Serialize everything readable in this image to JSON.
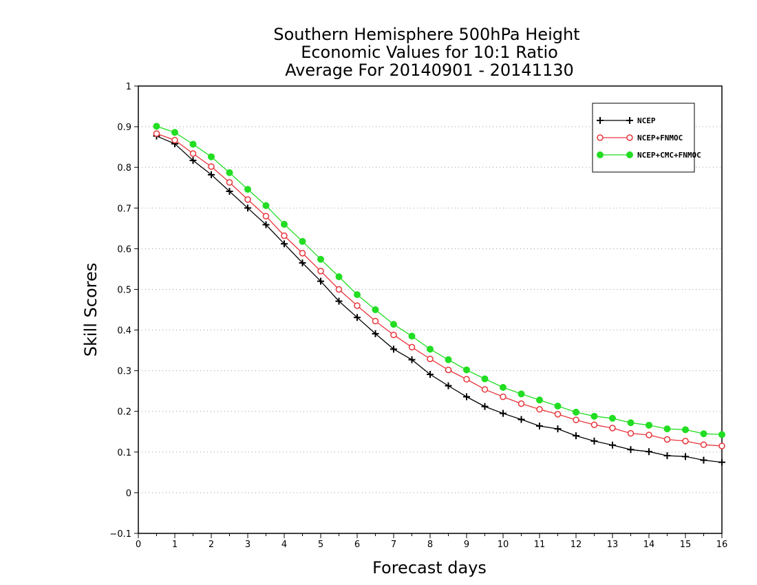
{
  "chart_data": {
    "type": "line",
    "title_lines": [
      "Southern Hemisphere 500hPa Height",
      "Economic Values for 10:1 Ratio",
      "Average For 20140901 - 20141130"
    ],
    "xlabel": "Forecast days",
    "ylabel": "Skill Scores",
    "xlim": [
      0,
      16
    ],
    "ylim": [
      -0.1,
      1
    ],
    "x_ticks": [
      "0",
      "1",
      "2",
      "3",
      "4",
      "5",
      "6",
      "7",
      "8",
      "9",
      "10",
      "11",
      "12",
      "13",
      "14",
      "15",
      "16"
    ],
    "y_ticks": [
      "−0.1",
      "0",
      "0.1",
      "0.2",
      "0.3",
      "0.4",
      "0.5",
      "0.6",
      "0.7",
      "0.8",
      "0.9",
      "1"
    ],
    "grid": "horizontal dotted",
    "legend_position": "top-right",
    "x": [
      0.5,
      1,
      1.5,
      2,
      2.5,
      3,
      3.5,
      4,
      4.5,
      5,
      5.5,
      6,
      6.5,
      7,
      7.5,
      8,
      8.5,
      9,
      9.5,
      10,
      10.5,
      11,
      11.5,
      12,
      12.5,
      13,
      13.5,
      14,
      14.5,
      15,
      15.5,
      16
    ],
    "series": [
      {
        "name": "NCEP",
        "color": "#000000",
        "marker": "plus",
        "values": [
          0.877,
          0.858,
          0.817,
          0.782,
          0.741,
          0.7,
          0.659,
          0.612,
          0.565,
          0.52,
          0.471,
          0.431,
          0.391,
          0.353,
          0.327,
          0.291,
          0.263,
          0.236,
          0.212,
          0.195,
          0.18,
          0.164,
          0.157,
          0.14,
          0.127,
          0.117,
          0.106,
          0.101,
          0.091,
          0.089,
          0.08,
          0.075
        ]
      },
      {
        "name": "NCEP+FNMOC",
        "color": "#e8343a",
        "marker": "open-circle",
        "values": [
          0.883,
          0.867,
          0.834,
          0.802,
          0.763,
          0.721,
          0.68,
          0.632,
          0.589,
          0.545,
          0.5,
          0.46,
          0.422,
          0.388,
          0.358,
          0.329,
          0.302,
          0.279,
          0.254,
          0.236,
          0.219,
          0.205,
          0.193,
          0.179,
          0.167,
          0.159,
          0.146,
          0.142,
          0.131,
          0.127,
          0.118,
          0.115
        ]
      },
      {
        "name": "NCEP+CMC+FNMOC",
        "color": "#22dd22",
        "marker": "filled-circle",
        "values": [
          0.901,
          0.886,
          0.857,
          0.826,
          0.787,
          0.746,
          0.706,
          0.66,
          0.618,
          0.574,
          0.531,
          0.487,
          0.45,
          0.414,
          0.385,
          0.353,
          0.327,
          0.302,
          0.28,
          0.259,
          0.243,
          0.228,
          0.213,
          0.198,
          0.188,
          0.183,
          0.172,
          0.166,
          0.157,
          0.155,
          0.145,
          0.143
        ]
      }
    ]
  }
}
